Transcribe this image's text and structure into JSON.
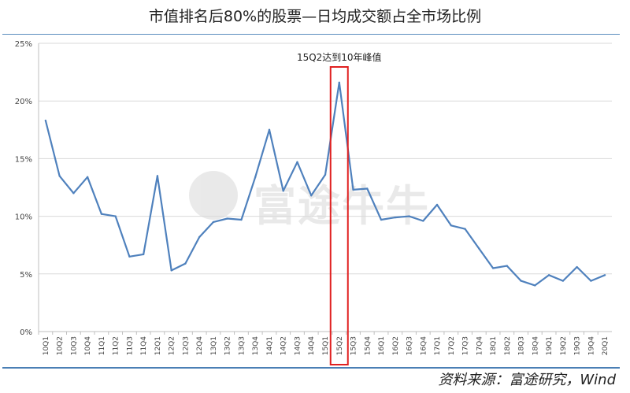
{
  "title": "市值排名后80%的股票—日均成交额占全市场比例",
  "source": "资料来源：富途研究，Wind",
  "watermark_text": "富途牛牛",
  "colors": {
    "line": "#4F81BD",
    "grid": "#D9D9D9",
    "highlight": "#E02020",
    "rule": "#4A7FB5"
  },
  "chart_data": {
    "type": "line",
    "categories": [
      "10Q1",
      "10Q2",
      "10Q3",
      "10Q4",
      "11Q1",
      "11Q2",
      "11Q3",
      "11Q4",
      "12Q1",
      "12Q2",
      "12Q3",
      "12Q4",
      "13Q1",
      "13Q2",
      "13Q3",
      "13Q4",
      "14Q1",
      "14Q2",
      "14Q3",
      "14Q4",
      "15Q1",
      "15Q2",
      "15Q3",
      "15Q4",
      "16Q1",
      "16Q2",
      "16Q3",
      "16Q4",
      "17Q1",
      "17Q2",
      "17Q3",
      "17Q4",
      "18Q1",
      "18Q2",
      "18Q3",
      "18Q4",
      "19Q1",
      "19Q2",
      "19Q3",
      "19Q4",
      "20Q1"
    ],
    "values": [
      18.3,
      13.5,
      12.0,
      13.4,
      10.2,
      10.0,
      6.5,
      6.7,
      13.5,
      5.3,
      5.9,
      8.2,
      9.5,
      9.8,
      9.7,
      13.4,
      17.5,
      12.2,
      14.7,
      11.8,
      13.6,
      21.6,
      12.3,
      12.4,
      9.7,
      9.9,
      10.0,
      9.6,
      11.0,
      9.2,
      8.9,
      7.2,
      5.5,
      5.7,
      4.4,
      4.0,
      4.9,
      4.4,
      5.6,
      4.4,
      4.9
    ],
    "ylim": [
      0,
      25
    ],
    "yticks": [
      "0%",
      "5%",
      "10%",
      "15%",
      "20%",
      "25%"
    ],
    "grid": true,
    "highlight": {
      "category": "15Q2",
      "label": "15Q2达到10年峰值"
    }
  }
}
